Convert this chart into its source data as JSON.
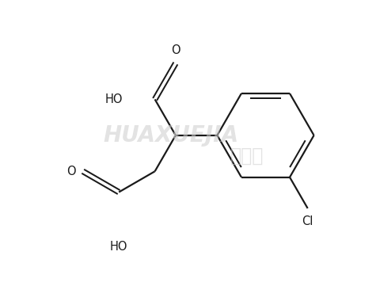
{
  "bg_color": "#ffffff",
  "line_color": "#1a1a1a",
  "lw": 1.6,
  "figsize": [
    4.8,
    3.56
  ],
  "dpi": 100,
  "xlim": [
    0,
    10
  ],
  "ylim": [
    0,
    7.4
  ],
  "watermark1": "HUAXUEJIA",
  "watermark2": "化学加",
  "watermark_color": "#cccccc",
  "label_fontsize": 10.5
}
